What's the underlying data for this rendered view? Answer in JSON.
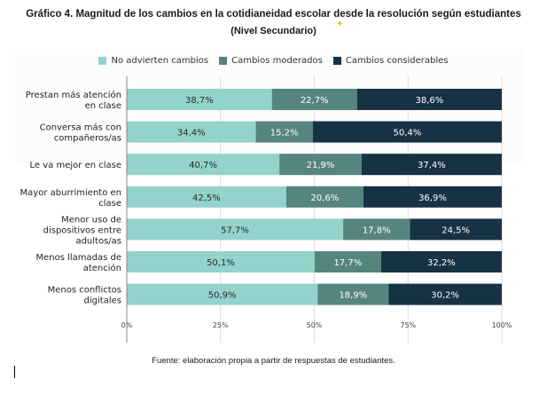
{
  "chart_data": {
    "type": "bar",
    "orientation": "horizontal",
    "stacked": true,
    "title": "Gráfico 4. Magnitud de los cambios en la cotidianeidad escolar desde la resolución según estudiantes",
    "subtitle": "(Nivel Secundario)",
    "categories": [
      [
        "Prestan más atención",
        "en clase"
      ],
      [
        "Conversa más con",
        "compañeros/as"
      ],
      [
        "Le va mejor en clase"
      ],
      [
        "Mayor aburrimiento en",
        "clase"
      ],
      [
        "Menor uso de",
        "dispositivos entre",
        "adultos/as"
      ],
      [
        "Menos llamadas de",
        "atención"
      ],
      [
        "Menos conflictos",
        "digitales"
      ]
    ],
    "series": [
      {
        "name": "No advierten cambios",
        "color": "#94d2cc",
        "label_color": "#1f2d2d",
        "values": [
          38.7,
          34.4,
          40.7,
          42.5,
          57.7,
          50.1,
          50.9
        ],
        "labels": [
          "38,7%",
          "34,4%",
          "40,7%",
          "42,5%",
          "57,7%",
          "50,1%",
          "50,9%"
        ]
      },
      {
        "name": "Cambios moderados",
        "color": "#568580",
        "label_color": "#ffffff",
        "values": [
          22.7,
          15.2,
          21.9,
          20.6,
          17.8,
          17.7,
          18.9
        ],
        "labels": [
          "22,7%",
          "15,2%",
          "21,9%",
          "20,6%",
          "17,8%",
          "17,7%",
          "18,9%"
        ]
      },
      {
        "name": "Cambios considerables",
        "color": "#173245",
        "label_color": "#ffffff",
        "values": [
          38.6,
          50.4,
          37.4,
          36.9,
          24.5,
          32.2,
          30.2
        ],
        "labels": [
          "38,6%",
          "50,4%",
          "37,4%",
          "36,9%",
          "24,5%",
          "32,2%",
          "30,2%"
        ]
      }
    ],
    "xlim": [
      0,
      100
    ],
    "xticks": [
      "0%",
      "25%",
      "50%",
      "75%",
      "100%"
    ],
    "grid": true,
    "legend": "top"
  },
  "footer": "Fuente: elaboración propia a partir de respuestas de estudiantes."
}
